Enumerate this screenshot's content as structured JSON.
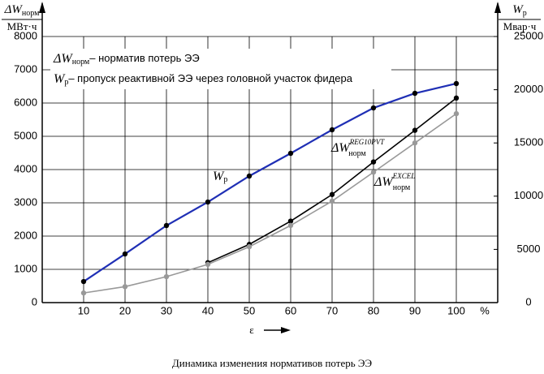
{
  "chart_data": {
    "type": "line",
    "caption": "Динамика изменения нормативов потерь ЭЭ",
    "y_label": {
      "symbol": "ΔW",
      "sub": "норм",
      "unit": "МВт·ч"
    },
    "y2_label": {
      "symbol": "W",
      "sub": "р",
      "unit": "Мвар·ч"
    },
    "x_label": "ε",
    "x_unit": "%",
    "annotations": [
      {
        "symbol": "ΔW",
        "sub": "норм",
        "text": "– норматив потерь ЭЭ"
      },
      {
        "symbol": "W",
        "sub": "р",
        "text": "– пропуск реактивной ЭЭ через головной участок фидера"
      }
    ],
    "x": [
      10,
      20,
      30,
      40,
      50,
      60,
      70,
      80,
      90,
      100
    ],
    "xlim": [
      0,
      110
    ],
    "xticks": [
      10,
      20,
      30,
      40,
      50,
      60,
      70,
      80,
      90,
      100
    ],
    "ylim": [
      0,
      8000
    ],
    "yticks": [
      0,
      1000,
      2000,
      3000,
      4000,
      5000,
      6000,
      7000,
      8000
    ],
    "y2lim": [
      0,
      25000
    ],
    "y2ticks": [
      0,
      5000,
      10000,
      15000,
      20000,
      25000
    ],
    "grid": true,
    "series": [
      {
        "name": "W",
        "sub": "р",
        "color": "#1f2fb5",
        "axis": "y2",
        "values": [
          1980,
          4570,
          7240,
          9450,
          11890,
          14025,
          16235,
          18290,
          19665,
          20580
        ]
      },
      {
        "name": "ΔW",
        "sub": "норм",
        "sup": "REG10PVT",
        "color": "#000000",
        "values": [
          null,
          null,
          null,
          1200,
          1750,
          2450,
          3250,
          4230,
          5180,
          6150
        ]
      },
      {
        "name": "ΔW",
        "sub": "норм",
        "sup": "EXCEL",
        "color": "#999999",
        "values": [
          290,
          480,
          780,
          1150,
          1680,
          2320,
          3050,
          3920,
          4800,
          5680
        ]
      }
    ]
  }
}
